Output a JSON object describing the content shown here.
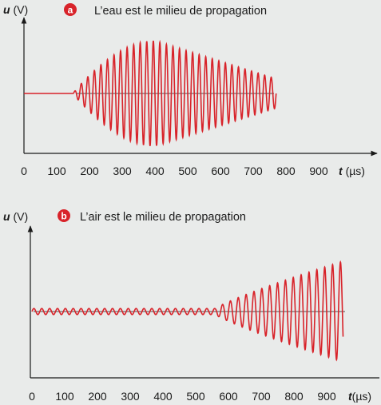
{
  "colors": {
    "signal": "#d8232a",
    "axis": "#1a1a1a",
    "badge": "#d8232a",
    "background": "#e9ebea"
  },
  "chart_data": [
    {
      "type": "line",
      "badge": "a",
      "title": "L’eau est le milieu de propagation",
      "ylabel_var": "u",
      "ylabel_unit": "(V)",
      "xlabel_var": "t",
      "xlabel_unit": "(µs)",
      "xlim": [
        0,
        1000
      ],
      "x_ticks": [
        "0",
        "100",
        "200",
        "300",
        "400",
        "500",
        "600",
        "700",
        "800",
        "900"
      ],
      "grid": false,
      "signal": {
        "shape": "wave packet",
        "baseline_end": 150,
        "start": 150,
        "peak_time": 400,
        "end": 770,
        "period": 20,
        "relative_amplitude_at_peak": 1.0
      }
    },
    {
      "type": "line",
      "badge": "b",
      "title": "L’air est le milieu de propagation",
      "ylabel_var": "u",
      "ylabel_unit": "(V)",
      "xlabel_var": "t",
      "xlabel_unit": "(µs)",
      "xlim": [
        0,
        1000
      ],
      "x_ticks": [
        "0",
        "100",
        "200",
        "300",
        "400",
        "500",
        "600",
        "700",
        "800",
        "900"
      ],
      "grid": false,
      "signal": {
        "shape": "growing oscillation",
        "start": 0,
        "rise_start": 560,
        "end": 950,
        "period": 24,
        "relative_amplitude_before_rise": 0.06,
        "relative_amplitude_at_end": 1.0
      }
    }
  ]
}
